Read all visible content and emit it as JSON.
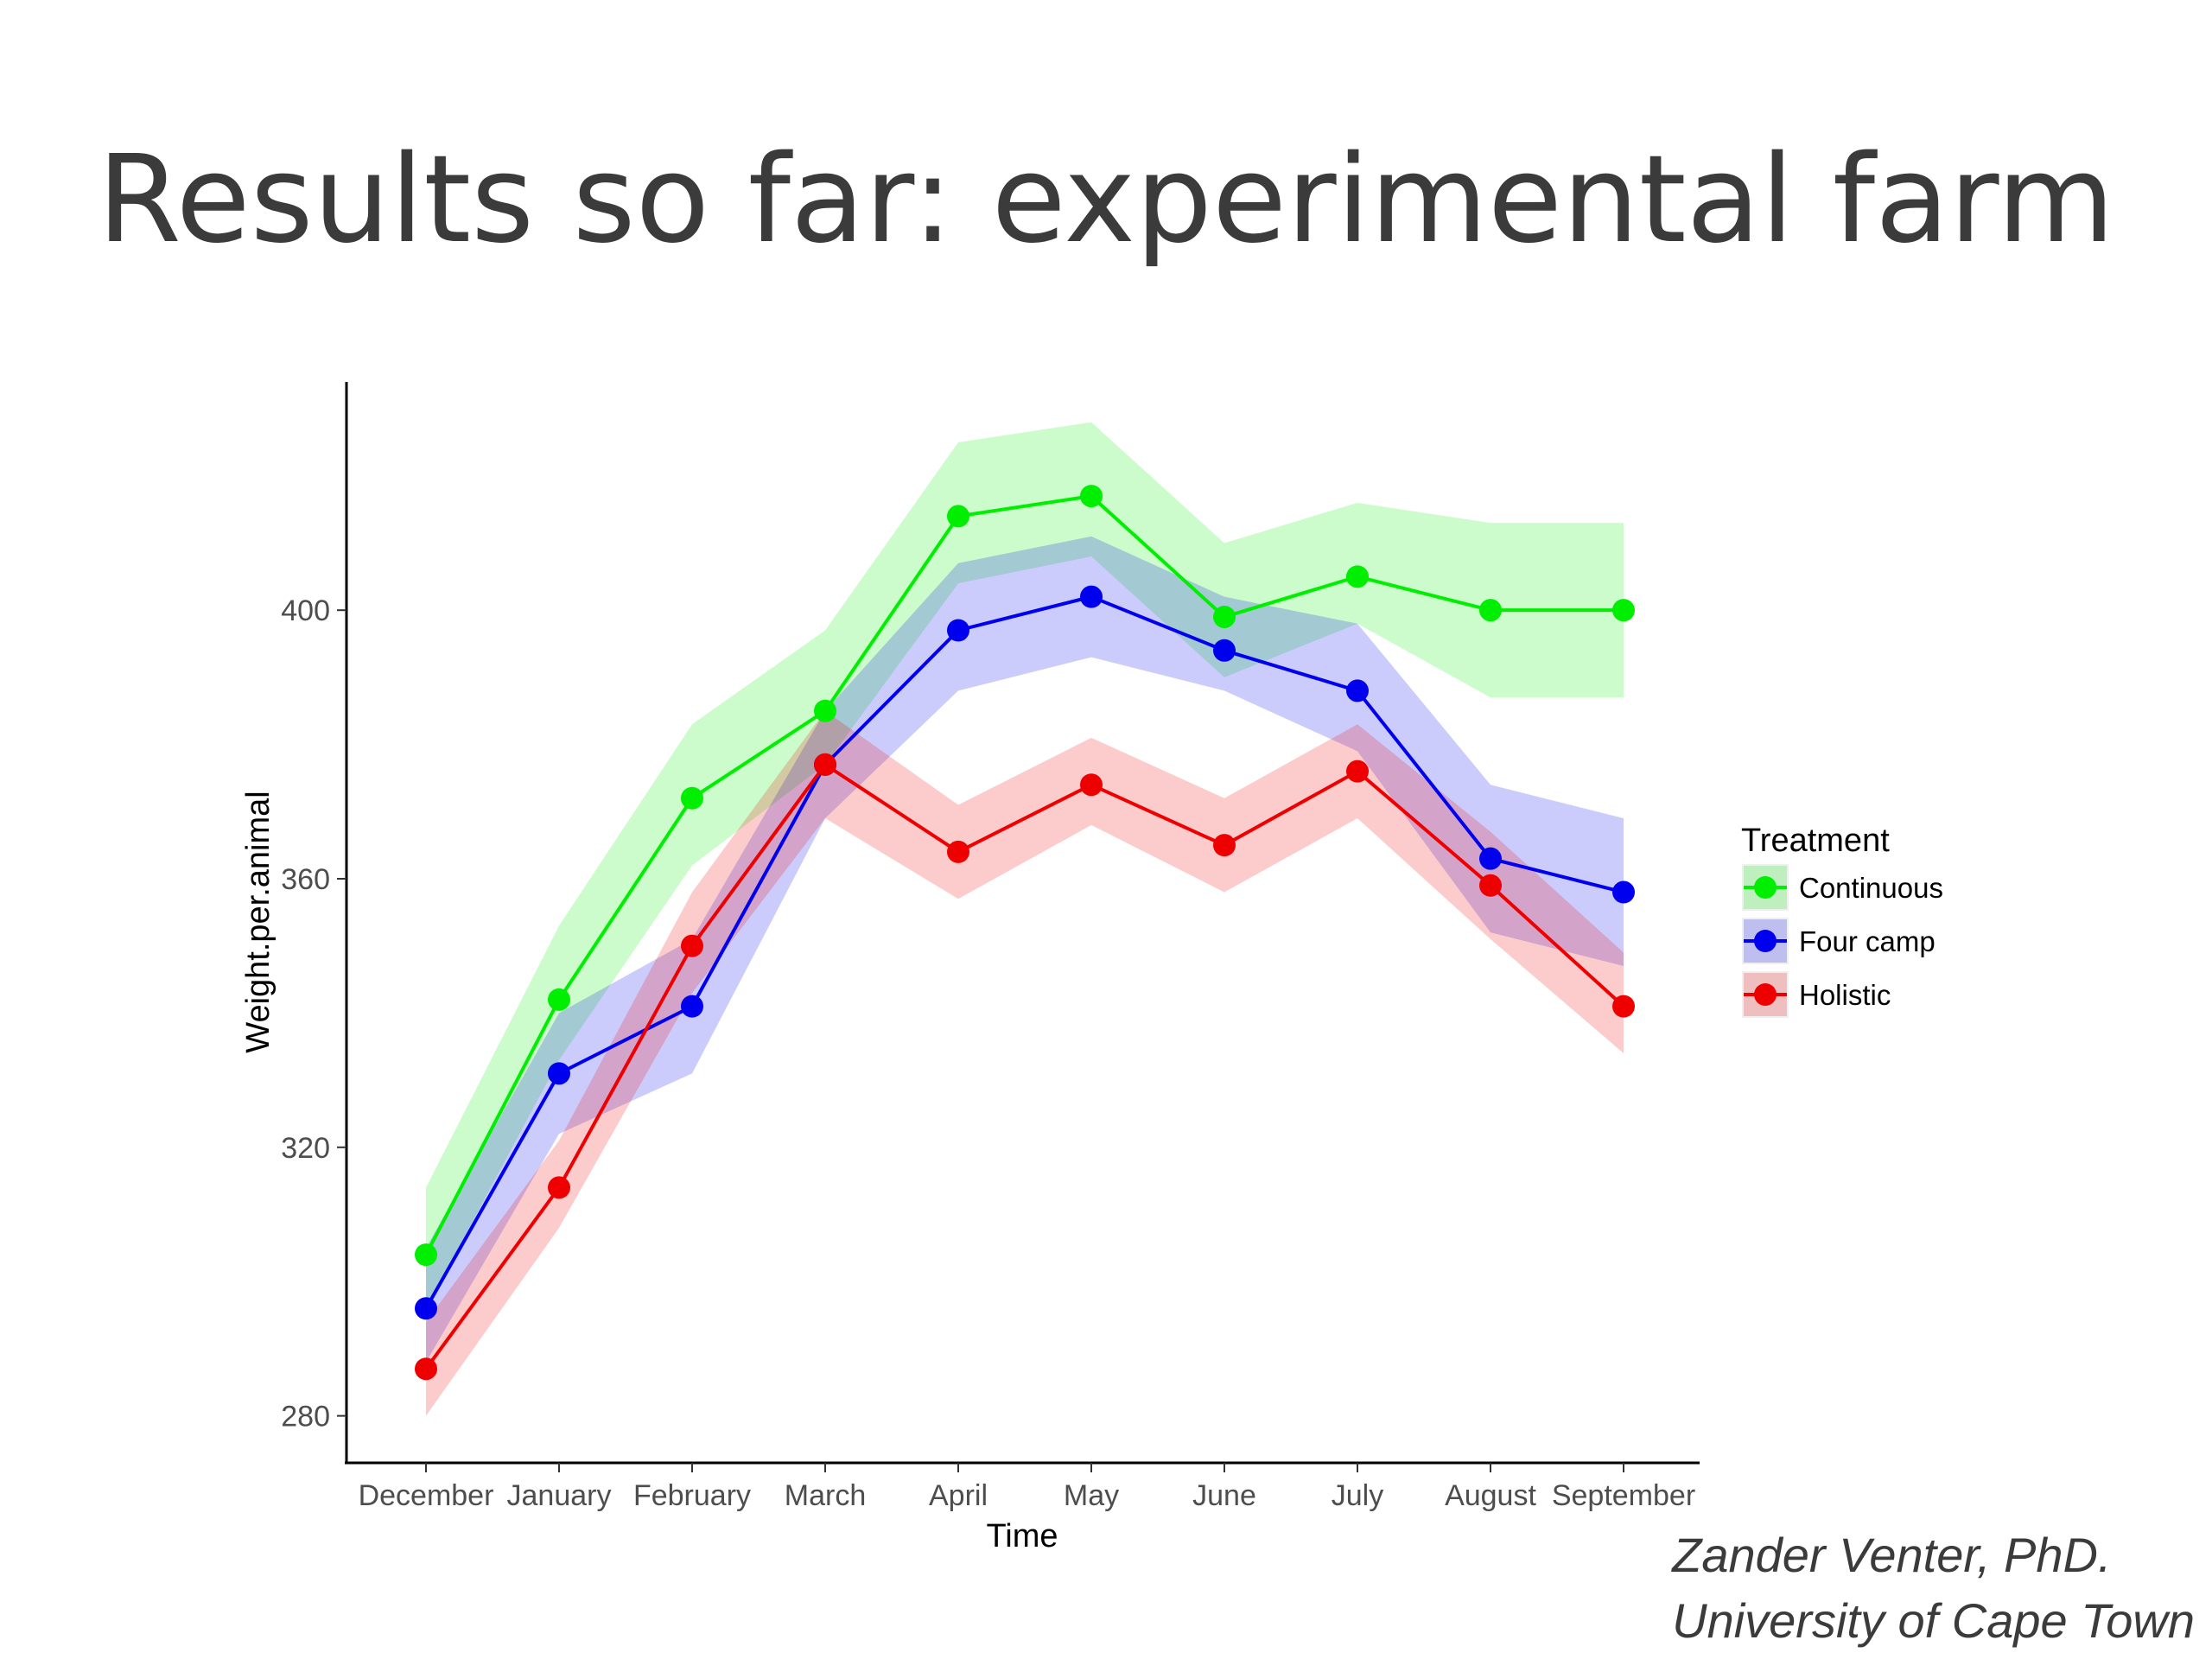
{
  "slide": {
    "title": "Results so far: experimental farm",
    "attribution_name": "Zander Venter, PhD.",
    "attribution_affiliation": "University of Cape Town"
  },
  "chart_data": {
    "type": "line",
    "title": "",
    "xlabel": "Time",
    "ylabel": "Weight.per.animal",
    "categories": [
      "December",
      "January",
      "February",
      "March",
      "April",
      "May",
      "June",
      "July",
      "August",
      "September"
    ],
    "ylim": [
      273,
      434
    ],
    "yticks": [
      280,
      320,
      360,
      400
    ],
    "grid": false,
    "legend": {
      "title": "Treatment",
      "position": "right"
    },
    "series": [
      {
        "name": "Continuous",
        "color": "#00ee00",
        "values": [
          304,
          342,
          372,
          385,
          414,
          417,
          399,
          405,
          400,
          400
        ],
        "lower": [
          296,
          333,
          362,
          377,
          404,
          408,
          390,
          398,
          387,
          387
        ],
        "upper": [
          314,
          353,
          383,
          397,
          425,
          428,
          410,
          416,
          413,
          413
        ]
      },
      {
        "name": "Four camp",
        "color": "#0000ee",
        "values": [
          296,
          331,
          341,
          377,
          397,
          402,
          394,
          388,
          363,
          358
        ],
        "lower": [
          288,
          322,
          331,
          369,
          388,
          393,
          388,
          379,
          352,
          347
        ],
        "upper": [
          305,
          340,
          351,
          385,
          407,
          411,
          402,
          398,
          374,
          369
        ]
      },
      {
        "name": "Holistic",
        "color": "#ee0000",
        "values": [
          287,
          314,
          350,
          377,
          364,
          374,
          365,
          376,
          359,
          341
        ],
        "lower": [
          280,
          308,
          343,
          369,
          357,
          368,
          358,
          369,
          351,
          334
        ],
        "upper": [
          294,
          321,
          358,
          385,
          371,
          381,
          372,
          383,
          367,
          349
        ]
      }
    ]
  }
}
